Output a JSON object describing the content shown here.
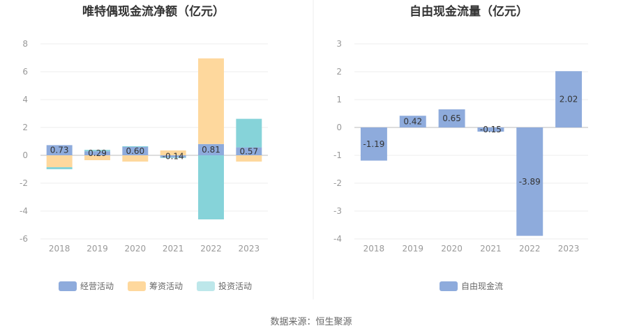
{
  "source": "数据来源：恒生聚源",
  "chart_data": [
    {
      "type": "bar",
      "stacked": true,
      "title": "唯特偶现金流净额（亿元）",
      "categories": [
        "2018",
        "2019",
        "2020",
        "2021",
        "2022",
        "2023"
      ],
      "ylim": [
        -6,
        8
      ],
      "yticks": [
        "8",
        "6",
        "4",
        "2",
        "0",
        "-2",
        "-4",
        "-6"
      ],
      "grid": true,
      "legend_position": "bottom",
      "series": [
        {
          "name": "经营活动",
          "color": "#8eabdc",
          "values": [
            0.73,
            0.29,
            0.6,
            -0.14,
            0.81,
            0.57
          ],
          "labels": [
            "0.73",
            "0.29",
            "0.60",
            "-0.14",
            "0.81",
            "0.57"
          ]
        },
        {
          "name": "筹资活动",
          "color": "#fed89d",
          "values": [
            -0.85,
            -0.35,
            -0.45,
            0.35,
            6.15,
            -0.45
          ]
        },
        {
          "name": "投资活动",
          "color": "#86d3d9",
          "values": [
            -0.15,
            0.1,
            0.05,
            -0.05,
            -4.6,
            2.05
          ]
        }
      ]
    },
    {
      "type": "bar",
      "title": "自由现金流量（亿元）",
      "categories": [
        "2018",
        "2019",
        "2020",
        "2021",
        "2022",
        "2023"
      ],
      "ylim": [
        -4,
        3
      ],
      "yticks": [
        "3",
        "2",
        "1",
        "0",
        "-1",
        "-2",
        "-3",
        "-4"
      ],
      "grid": true,
      "legend_position": "bottom",
      "series": [
        {
          "name": "自由现金流",
          "color": "#8eabdc",
          "values": [
            -1.19,
            0.42,
            0.65,
            -0.15,
            -3.89,
            2.02
          ],
          "labels": [
            "-1.19",
            "0.42",
            "0.65",
            "-0.15",
            "-3.89",
            "2.02"
          ]
        }
      ]
    }
  ]
}
